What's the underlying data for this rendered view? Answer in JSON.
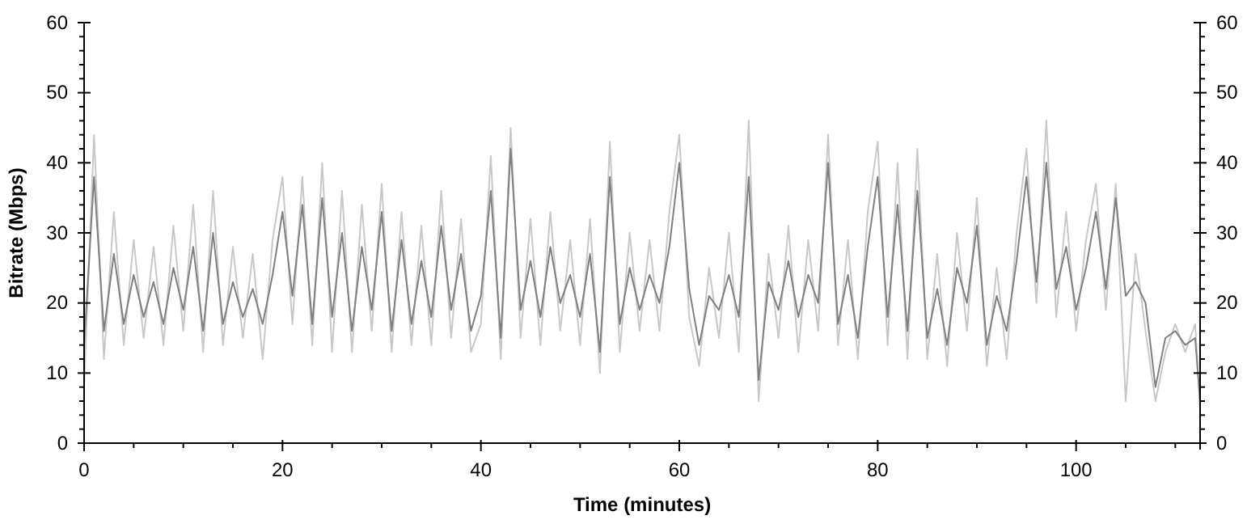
{
  "chart_data": {
    "type": "line",
    "xlabel": "Time (minutes)",
    "ylabel": "Bitrate (Mbps)",
    "x": [
      0,
      1,
      2,
      3,
      4,
      5,
      6,
      7,
      8,
      9,
      10,
      11,
      12,
      13,
      14,
      15,
      16,
      17,
      18,
      19,
      20,
      21,
      22,
      23,
      24,
      25,
      26,
      27,
      28,
      29,
      30,
      31,
      32,
      33,
      34,
      35,
      36,
      37,
      38,
      39,
      40,
      41,
      42,
      43,
      44,
      45,
      46,
      47,
      48,
      49,
      50,
      51,
      52,
      53,
      54,
      55,
      56,
      57,
      58,
      59,
      60,
      61,
      62,
      63,
      64,
      65,
      66,
      67,
      68,
      69,
      70,
      71,
      72,
      73,
      74,
      75,
      76,
      77,
      78,
      79,
      80,
      81,
      82,
      83,
      84,
      85,
      86,
      87,
      88,
      89,
      90,
      91,
      92,
      93,
      94,
      95,
      96,
      97,
      98,
      99,
      100,
      101,
      102,
      103,
      104,
      105,
      106,
      107,
      108,
      109,
      110,
      111,
      112,
      112.5
    ],
    "series": [
      {
        "color": "#c8c8c8",
        "values": [
          8,
          44,
          12,
          33,
          14,
          29,
          15,
          28,
          14,
          31,
          16,
          34,
          13,
          36,
          14,
          28,
          15,
          27,
          12,
          29,
          38,
          17,
          38,
          14,
          40,
          13,
          36,
          13,
          34,
          16,
          37,
          13,
          33,
          14,
          31,
          14,
          36,
          15,
          32,
          13,
          17,
          41,
          12,
          45,
          15,
          32,
          14,
          33,
          16,
          29,
          14,
          32,
          10,
          43,
          13,
          30,
          16,
          29,
          16,
          33,
          44,
          18,
          11,
          25,
          15,
          30,
          13,
          46,
          6,
          27,
          15,
          31,
          13,
          29,
          16,
          44,
          14,
          29,
          12,
          33,
          43,
          14,
          40,
          12,
          42,
          12,
          27,
          11,
          30,
          16,
          35,
          11,
          25,
          12,
          30,
          42,
          20,
          46,
          18,
          33,
          16,
          29,
          37,
          19,
          37,
          6,
          27,
          16,
          6,
          13,
          17,
          13,
          17,
          5
        ]
      },
      {
        "color": "#808080",
        "values": [
          14,
          38,
          16,
          27,
          17,
          24,
          18,
          23,
          17,
          25,
          19,
          28,
          16,
          30,
          17,
          23,
          18,
          22,
          17,
          24,
          33,
          21,
          34,
          17,
          35,
          18,
          30,
          16,
          28,
          19,
          33,
          16,
          29,
          17,
          26,
          18,
          31,
          19,
          27,
          16,
          21,
          36,
          15,
          42,
          19,
          26,
          18,
          28,
          20,
          24,
          18,
          27,
          13,
          38,
          17,
          25,
          19,
          24,
          20,
          28,
          40,
          22,
          14,
          21,
          19,
          24,
          18,
          38,
          9,
          23,
          19,
          26,
          18,
          24,
          20,
          40,
          17,
          24,
          15,
          28,
          38,
          18,
          34,
          16,
          36,
          15,
          22,
          14,
          25,
          20,
          31,
          14,
          21,
          16,
          26,
          38,
          23,
          40,
          22,
          28,
          19,
          25,
          33,
          22,
          35,
          21,
          23,
          20,
          8,
          15,
          16,
          14,
          15,
          6
        ]
      }
    ],
    "xlim": [
      0,
      112.5
    ],
    "xticks": [
      0,
      {
        "value": 5,
        "label": null
      },
      {
        "value": 10,
        "label": null
      },
      {
        "value": 15,
        "label": null
      },
      20,
      {
        "value": 25,
        "label": null
      },
      {
        "value": 30,
        "label": null
      },
      {
        "value": 35,
        "label": null
      },
      40,
      {
        "value": 45,
        "label": null
      },
      {
        "value": 50,
        "label": null
      },
      {
        "value": 55,
        "label": null
      },
      60,
      {
        "value": 65,
        "label": null
      },
      {
        "value": 70,
        "label": null
      },
      {
        "value": 75,
        "label": null
      },
      80,
      {
        "value": 85,
        "label": null
      },
      {
        "value": 90,
        "label": null
      },
      {
        "value": 95,
        "label": null
      },
      100,
      {
        "value": 105,
        "label": null
      },
      {
        "value": 110,
        "label": null
      }
    ],
    "ylim": [
      0,
      60
    ],
    "yticks": [
      0,
      {
        "value": 2,
        "label": null
      },
      {
        "value": 4,
        "label": null
      },
      {
        "value": 6,
        "label": null
      },
      {
        "value": 8,
        "label": null
      },
      10,
      {
        "value": 12,
        "label": null
      },
      {
        "value": 14,
        "label": null
      },
      {
        "value": 16,
        "label": null
      },
      {
        "value": 18,
        "label": null
      },
      20,
      {
        "value": 22,
        "label": null
      },
      {
        "value": 24,
        "label": null
      },
      {
        "value": 26,
        "label": null
      },
      {
        "value": 28,
        "label": null
      },
      30,
      {
        "value": 32,
        "label": null
      },
      {
        "value": 34,
        "label": null
      },
      {
        "value": 36,
        "label": null
      },
      {
        "value": 38,
        "label": null
      },
      40,
      {
        "value": 42,
        "label": null
      },
      {
        "value": 44,
        "label": null
      },
      {
        "value": 46,
        "label": null
      },
      {
        "value": 48,
        "label": null
      },
      50,
      {
        "value": 52,
        "label": null
      },
      {
        "value": 54,
        "label": null
      },
      {
        "value": 56,
        "label": null
      },
      {
        "value": 58,
        "label": null
      },
      60
    ],
    "y2lim": [
      0,
      60
    ],
    "y2ticks": [
      0,
      {
        "value": 2,
        "label": null
      },
      {
        "value": 4,
        "label": null
      },
      {
        "value": 6,
        "label": null
      },
      {
        "value": 8,
        "label": null
      },
      10,
      {
        "value": 12,
        "label": null
      },
      {
        "value": 14,
        "label": null
      },
      {
        "value": 16,
        "label": null
      },
      {
        "value": 18,
        "label": null
      },
      20,
      {
        "value": 22,
        "label": null
      },
      {
        "value": 24,
        "label": null
      },
      {
        "value": 26,
        "label": null
      },
      {
        "value": 28,
        "label": null
      },
      30,
      {
        "value": 32,
        "label": null
      },
      {
        "value": 34,
        "label": null
      },
      {
        "value": 36,
        "label": null
      },
      {
        "value": 38,
        "label": null
      },
      40,
      {
        "value": 42,
        "label": null
      },
      {
        "value": 44,
        "label": null
      },
      {
        "value": 46,
        "label": null
      },
      {
        "value": 48,
        "label": null
      },
      50,
      {
        "value": 52,
        "label": null
      },
      {
        "value": 54,
        "label": null
      },
      {
        "value": 56,
        "label": null
      },
      {
        "value": 58,
        "label": null
      },
      60
    ],
    "grid": false,
    "marker": "none",
    "line_style": "solid"
  }
}
